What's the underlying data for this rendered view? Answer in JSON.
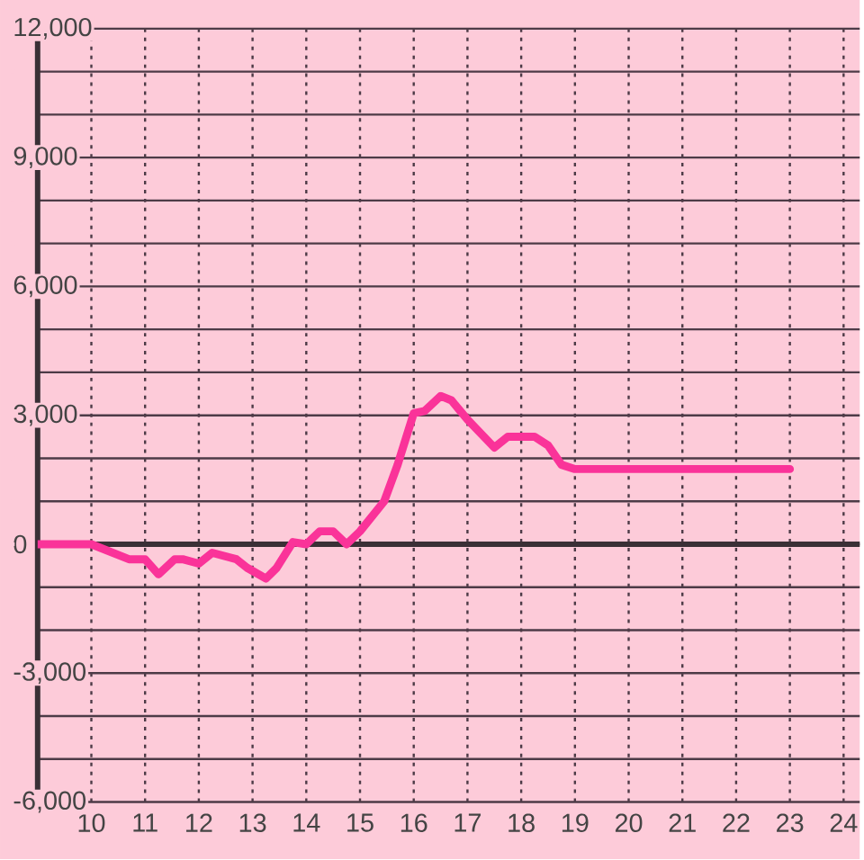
{
  "chart_data": {
    "type": "line",
    "x": [
      9,
      10,
      10.7,
      11,
      11.25,
      11.55,
      11.7,
      12,
      12.25,
      12.7,
      12.9,
      13.25,
      13.45,
      13.75,
      14,
      14.25,
      14.5,
      14.75,
      15,
      15.45,
      15.7,
      16,
      16.2,
      16.5,
      16.7,
      17,
      17.5,
      17.75,
      18.25,
      18.5,
      18.75,
      19,
      23
    ],
    "series": [
      {
        "color": "#fa3399",
        "values": [
          0,
          0,
          -350,
          -350,
          -700,
          -350,
          -350,
          -450,
          -200,
          -350,
          -550,
          -800,
          -550,
          50,
          0,
          300,
          300,
          0,
          300,
          1000,
          1850,
          3050,
          3100,
          3450,
          3350,
          2900,
          2250,
          2500,
          2500,
          2300,
          1850,
          1750,
          1750
        ]
      }
    ],
    "xlim": [
      9,
      24.3
    ],
    "xticks": [
      10,
      11,
      12,
      13,
      14,
      15,
      16,
      17,
      18,
      19,
      20,
      21,
      22,
      23,
      24
    ],
    "ylim": [
      -6000,
      12000
    ],
    "yticks": [
      {
        "value": -6000,
        "label": "-6,000"
      },
      {
        "value": -5000,
        "label": null
      },
      {
        "value": -4000,
        "label": null
      },
      {
        "value": -3000,
        "label": "-3,000"
      },
      {
        "value": -2000,
        "label": null
      },
      {
        "value": -1000,
        "label": null
      },
      0,
      {
        "value": 1000,
        "label": null
      },
      {
        "value": 2000,
        "label": null
      },
      {
        "value": 3000,
        "label": "3,000"
      },
      {
        "value": 4000,
        "label": null
      },
      {
        "value": 5000,
        "label": null
      },
      {
        "value": 6000,
        "label": "6,000"
      },
      {
        "value": 7000,
        "label": null
      },
      {
        "value": 8000,
        "label": null
      },
      {
        "value": 9000,
        "label": "9,000"
      },
      {
        "value": 10000,
        "label": null
      },
      {
        "value": 11000,
        "label": null
      },
      {
        "value": 12000,
        "label": "12,000"
      }
    ],
    "grid": true,
    "marker": "none",
    "line_style": "solid"
  }
}
